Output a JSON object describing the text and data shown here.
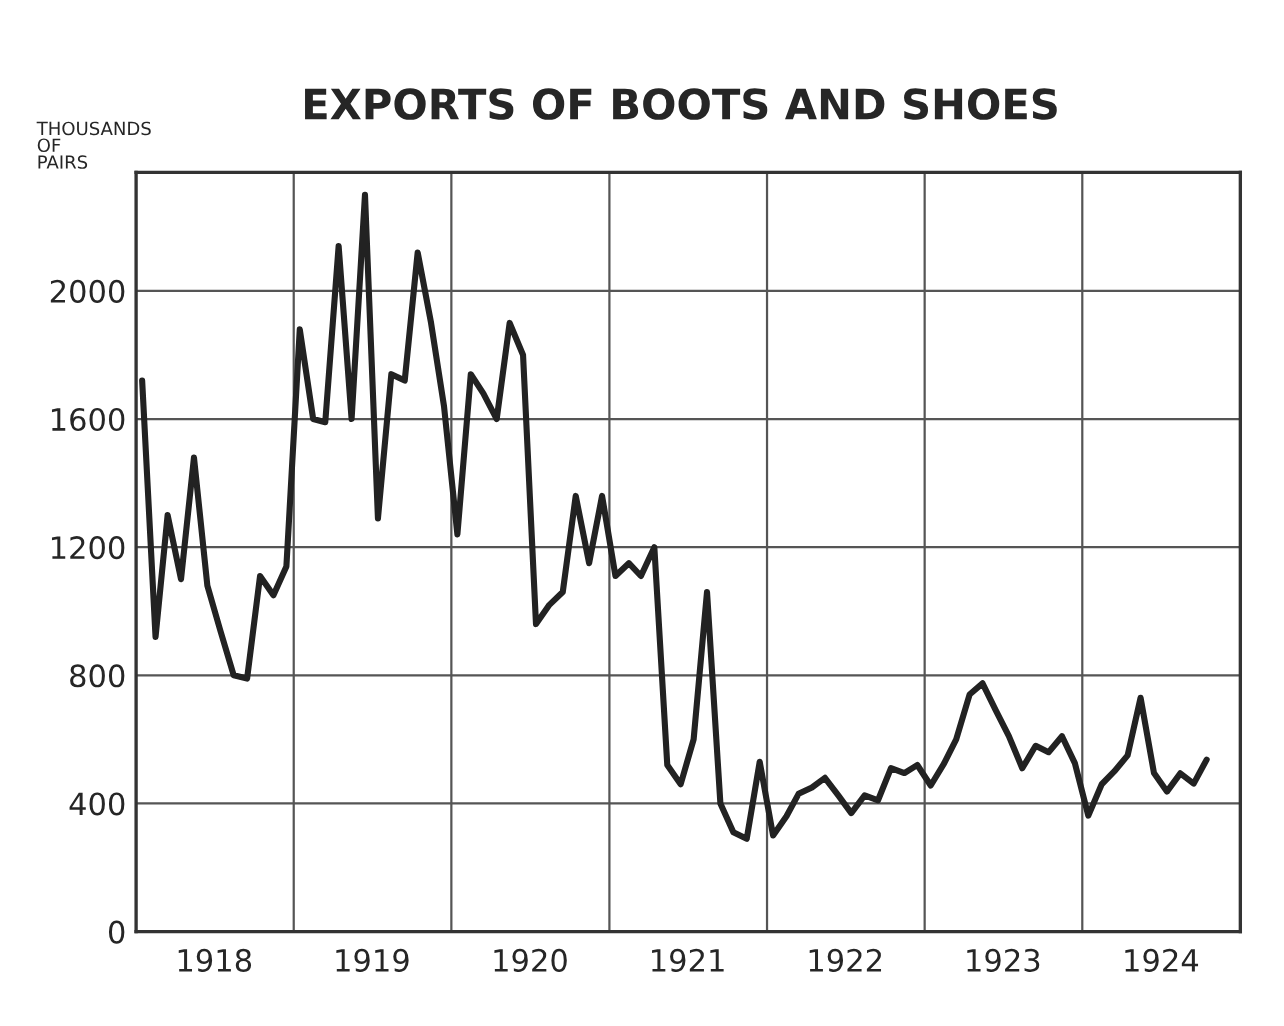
{
  "chart_data": {
    "type": "line",
    "title": "EXPORTS OF BOOTS AND SHOES",
    "ylabel": "THOUSANDS\nOF\nPAIRS",
    "x": [
      "1918-01-15",
      "1918-02-15",
      "1918-03-15",
      "1918-04-15",
      "1918-05-15",
      "1918-06-15",
      "1918-07-15",
      "1918-08-15",
      "1918-09-15",
      "1918-10-15",
      "1918-11-15",
      "1918-12-15",
      "1919-01-15",
      "1919-02-15",
      "1919-03-15",
      "1919-04-15",
      "1919-05-15",
      "1919-06-15",
      "1919-07-15",
      "1919-08-15",
      "1919-09-15",
      "1919-10-15",
      "1919-11-15",
      "1919-12-15",
      "1920-01-15",
      "1920-02-15",
      "1920-03-15",
      "1920-04-15",
      "1920-05-15",
      "1920-06-15",
      "1920-07-15",
      "1920-08-15",
      "1920-09-15",
      "1920-10-15",
      "1920-11-15",
      "1920-12-15",
      "1921-01-15",
      "1921-02-15",
      "1921-03-15",
      "1921-04-15",
      "1921-05-15",
      "1921-06-15",
      "1921-07-15",
      "1921-08-15",
      "1921-09-15",
      "1921-10-15",
      "1921-11-15",
      "1921-12-15",
      "1922-01-15",
      "1922-02-15",
      "1922-03-15",
      "1922-04-15",
      "1922-05-15",
      "1922-06-15",
      "1922-07-15",
      "1922-08-15",
      "1922-09-15",
      "1922-10-15",
      "1922-11-15",
      "1922-12-15",
      "1923-01-15",
      "1923-02-15",
      "1923-03-15",
      "1923-04-15",
      "1923-05-15",
      "1923-06-15",
      "1923-07-15",
      "1923-08-15",
      "1923-09-15",
      "1923-10-15",
      "1923-11-15",
      "1923-12-15",
      "1924-01-15",
      "1924-02-15",
      "1924-03-15",
      "1924-04-15",
      "1924-05-15",
      "1924-06-15",
      "1924-07-15",
      "1924-08-15",
      "1924-09-15",
      "1924-10-15"
    ],
    "series": [
      {
        "color": "#222222",
        "values": [
          1720,
          920,
          1300,
          1100,
          1480,
          1080,
          940,
          800,
          790,
          1110,
          1050,
          1140,
          1880,
          1600,
          1590,
          2140,
          1600,
          2300,
          1290,
          1740,
          1720,
          2120,
          1900,
          1640,
          1240,
          1740,
          1680,
          1600,
          1900,
          1800,
          960,
          1020,
          1060,
          1360,
          1150,
          1360,
          1110,
          1150,
          1110,
          1200,
          520,
          460,
          600,
          1060,
          400,
          310,
          290,
          530,
          300,
          360,
          430,
          450,
          480,
          425,
          370,
          425,
          410,
          510,
          495,
          520,
          456,
          525,
          600,
          740,
          775,
          690,
          610,
          510,
          580,
          560,
          610,
          525,
          362,
          460,
          500,
          550,
          730,
          495,
          437,
          494,
          462,
          537
        ]
      }
    ],
    "xlim": [
      "1918-01",
      "1925-01"
    ],
    "xticks": [
      {
        "value": "1919-01",
        "label": null
      },
      {
        "value": "1920-01",
        "label": null
      },
      {
        "value": "1921-01",
        "label": null
      },
      {
        "value": "1922-01",
        "label": null
      },
      {
        "value": "1923-01",
        "label": null
      },
      {
        "value": "1924-01",
        "label": null
      },
      {
        "value": "1918-07",
        "label": "1918"
      },
      {
        "value": "1919-07",
        "label": "1919"
      },
      {
        "value": "1920-07",
        "label": "1920"
      },
      {
        "value": "1921-07",
        "label": "1921"
      },
      {
        "value": "1922-07",
        "label": "1922"
      },
      {
        "value": "1923-07",
        "label": "1923"
      },
      {
        "value": "1924-07",
        "label": "1924"
      }
    ],
    "ylim": [
      0,
      2370
    ],
    "yticks": [
      0,
      400,
      800,
      1200,
      1600,
      2000
    ],
    "grid": true,
    "line_style": "solid",
    "marker": "none",
    "legend": false
  }
}
